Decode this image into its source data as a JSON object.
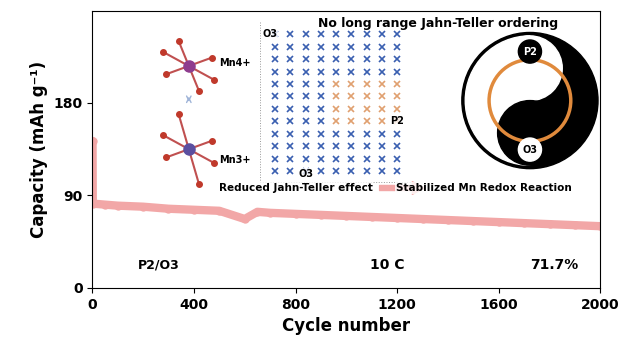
{
  "chart_data": {
    "type": "line",
    "y_label": "Capacity (mAh g⁻¹)",
    "x_label": "Cycle number",
    "title": "No long range Jahn-Teller ordering",
    "x": [
      1,
      2,
      50,
      100,
      200,
      300,
      400,
      500,
      600,
      650,
      700,
      800,
      900,
      1000,
      1100,
      1200,
      1300,
      1400,
      1500,
      1600,
      1700,
      1800,
      1900,
      2000
    ],
    "series": [
      {
        "name": "P2/O3",
        "color": "#f2a7a7",
        "marker": "o",
        "values": [
          143,
          82,
          81,
          80,
          79,
          77,
          76,
          75,
          67,
          74,
          73,
          72,
          71,
          70,
          69,
          68,
          67,
          66,
          65,
          64,
          63,
          62,
          61,
          60
        ]
      }
    ],
    "xlim": [
      0,
      2000
    ],
    "xticks": [
      0,
      400,
      800,
      1200,
      1600,
      2000
    ],
    "ylim": [
      0,
      270
    ],
    "yticks": [
      0,
      90,
      180
    ],
    "annotations": [
      "P2/O3",
      "10 C",
      "71.7%",
      "Reduced Jahn-Teller effect",
      "Stabilized Mn Redox Reaction",
      "Mn4+",
      "Mn3+",
      "O3",
      "P2",
      "O3"
    ],
    "inset": {
      "labels": [
        "P2",
        "Mn3+",
        "Mn4+",
        "O3"
      ]
    }
  }
}
